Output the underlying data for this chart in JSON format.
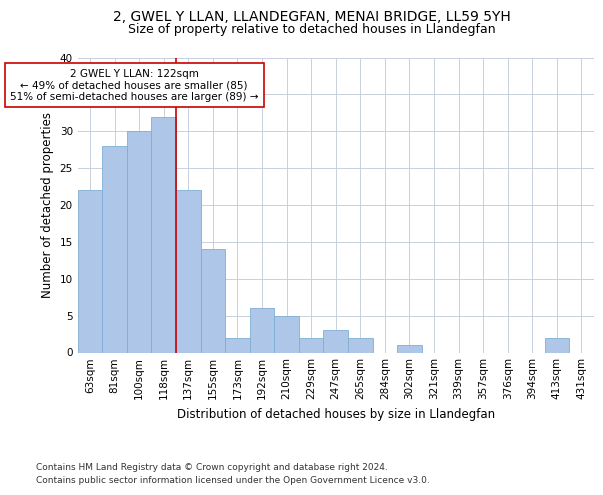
{
  "title": "2, GWEL Y LLAN, LLANDEGFAN, MENAI BRIDGE, LL59 5YH",
  "subtitle": "Size of property relative to detached houses in Llandegfan",
  "xlabel": "Distribution of detached houses by size in Llandegfan",
  "ylabel": "Number of detached properties",
  "categories": [
    "63sqm",
    "81sqm",
    "100sqm",
    "118sqm",
    "137sqm",
    "155sqm",
    "173sqm",
    "192sqm",
    "210sqm",
    "229sqm",
    "247sqm",
    "265sqm",
    "284sqm",
    "302sqm",
    "321sqm",
    "339sqm",
    "357sqm",
    "376sqm",
    "394sqm",
    "413sqm",
    "431sqm"
  ],
  "values": [
    22,
    28,
    30,
    32,
    22,
    14,
    2,
    6,
    5,
    2,
    3,
    2,
    0,
    1,
    0,
    0,
    0,
    0,
    0,
    2,
    0
  ],
  "bar_color": "#aec6e8",
  "bar_edge_color": "#7fafd4",
  "grid_color": "#c8d0de",
  "background_color": "#ffffff",
  "annotation_text_line1": "2 GWEL Y LLAN: 122sqm",
  "annotation_text_line2": "← 49% of detached houses are smaller (85)",
  "annotation_text_line3": "51% of semi-detached houses are larger (89) →",
  "annotation_box_color": "#ffffff",
  "annotation_box_edge": "#cc0000",
  "red_line_color": "#cc0000",
  "ylim": [
    0,
    40
  ],
  "yticks": [
    0,
    5,
    10,
    15,
    20,
    25,
    30,
    35,
    40
  ],
  "footnote1": "Contains HM Land Registry data © Crown copyright and database right 2024.",
  "footnote2": "Contains public sector information licensed under the Open Government Licence v3.0.",
  "title_fontsize": 10,
  "subtitle_fontsize": 9,
  "axis_label_fontsize": 8.5,
  "tick_fontsize": 7.5,
  "annotation_fontsize": 7.5,
  "footnote_fontsize": 6.5
}
